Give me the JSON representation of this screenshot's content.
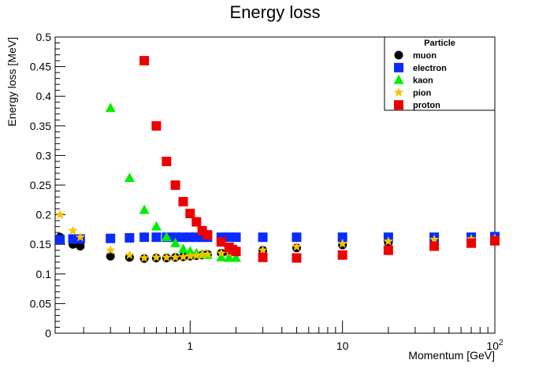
{
  "chart_data": {
    "type": "scatter",
    "title": "Energy loss",
    "xlabel": "Momentum [GeV]",
    "ylabel": "Energy loss [MeV]",
    "xscale": "log",
    "xlim": [
      0.13,
      100
    ],
    "ylim": [
      0,
      0.5
    ],
    "x_ticks": [
      {
        "value": 1,
        "label": "1"
      },
      {
        "value": 10,
        "label": "10"
      },
      {
        "value": 100,
        "label": "10",
        "sup": "2"
      }
    ],
    "y_ticks": [
      {
        "value": 0,
        "label": "0"
      },
      {
        "value": 0.05,
        "label": "0.05"
      },
      {
        "value": 0.1,
        "label": "0.1"
      },
      {
        "value": 0.15,
        "label": "0.15"
      },
      {
        "value": 0.2,
        "label": "0.2"
      },
      {
        "value": 0.25,
        "label": "0.25"
      },
      {
        "value": 0.3,
        "label": "0.3"
      },
      {
        "value": 0.35,
        "label": "0.35"
      },
      {
        "value": 0.4,
        "label": "0.4"
      },
      {
        "value": 0.45,
        "label": "0.45"
      },
      {
        "value": 0.5,
        "label": "0.5"
      }
    ],
    "legend_title": "Particle",
    "legend_position": "top-right",
    "grid": false,
    "series": [
      {
        "name": "muon",
        "marker": "circle",
        "color": "#000000",
        "points": [
          [
            0.14,
            0.162
          ],
          [
            0.17,
            0.15
          ],
          [
            0.19,
            0.147
          ],
          [
            0.3,
            0.13
          ],
          [
            0.4,
            0.128
          ],
          [
            0.5,
            0.126
          ],
          [
            0.6,
            0.127
          ],
          [
            0.7,
            0.127
          ],
          [
            0.8,
            0.128
          ],
          [
            0.9,
            0.129
          ],
          [
            1.0,
            0.13
          ],
          [
            1.1,
            0.131
          ],
          [
            1.2,
            0.132
          ],
          [
            1.3,
            0.133
          ],
          [
            1.6,
            0.135
          ],
          [
            1.8,
            0.136
          ],
          [
            2.0,
            0.137
          ],
          [
            3.0,
            0.14
          ],
          [
            5.0,
            0.144
          ],
          [
            10,
            0.149
          ],
          [
            20,
            0.153
          ],
          [
            40,
            0.156
          ],
          [
            70,
            0.158
          ],
          [
            100,
            0.159
          ]
        ]
      },
      {
        "name": "electron",
        "marker": "square",
        "color": "#0a2bff",
        "points": [
          [
            0.14,
            0.158
          ],
          [
            0.17,
            0.159
          ],
          [
            0.19,
            0.159
          ],
          [
            0.3,
            0.16
          ],
          [
            0.4,
            0.161
          ],
          [
            0.5,
            0.162
          ],
          [
            0.6,
            0.162
          ],
          [
            0.7,
            0.162
          ],
          [
            0.8,
            0.162
          ],
          [
            0.9,
            0.162
          ],
          [
            1.0,
            0.162
          ],
          [
            1.1,
            0.162
          ],
          [
            1.2,
            0.162
          ],
          [
            1.3,
            0.162
          ],
          [
            1.6,
            0.162
          ],
          [
            1.8,
            0.162
          ],
          [
            2.0,
            0.162
          ],
          [
            3.0,
            0.162
          ],
          [
            5.0,
            0.162
          ],
          [
            10,
            0.162
          ],
          [
            20,
            0.162
          ],
          [
            40,
            0.162
          ],
          [
            70,
            0.162
          ],
          [
            100,
            0.163
          ]
        ]
      },
      {
        "name": "kaon",
        "marker": "triangle",
        "color": "#00ee00",
        "points": [
          [
            0.3,
            0.38
          ],
          [
            0.4,
            0.262
          ],
          [
            0.5,
            0.208
          ],
          [
            0.6,
            0.18
          ],
          [
            0.7,
            0.162
          ],
          [
            0.8,
            0.152
          ],
          [
            0.9,
            0.142
          ],
          [
            1.0,
            0.138
          ],
          [
            1.1,
            0.135
          ],
          [
            1.2,
            0.133
          ],
          [
            1.3,
            0.132
          ],
          [
            1.6,
            0.128
          ],
          [
            1.8,
            0.127
          ],
          [
            2.0,
            0.127
          ]
        ]
      },
      {
        "name": "pion",
        "marker": "star",
        "color": "#f5c400",
        "points": [
          [
            0.14,
            0.2
          ],
          [
            0.17,
            0.173
          ],
          [
            0.19,
            0.162
          ],
          [
            0.3,
            0.14
          ],
          [
            0.4,
            0.132
          ],
          [
            0.5,
            0.127
          ],
          [
            0.6,
            0.128
          ],
          [
            0.7,
            0.128
          ],
          [
            0.8,
            0.128
          ],
          [
            0.9,
            0.129
          ],
          [
            1.0,
            0.13
          ],
          [
            1.1,
            0.131
          ],
          [
            1.2,
            0.132
          ],
          [
            1.3,
            0.133
          ],
          [
            1.6,
            0.135
          ],
          [
            1.8,
            0.136
          ],
          [
            2.0,
            0.137
          ],
          [
            3.0,
            0.14
          ],
          [
            5.0,
            0.146
          ],
          [
            10,
            0.151
          ],
          [
            20,
            0.155
          ],
          [
            40,
            0.158
          ],
          [
            70,
            0.159
          ],
          [
            100,
            0.16
          ]
        ]
      },
      {
        "name": "proton",
        "marker": "square",
        "color": "#ee0000",
        "points": [
          [
            0.5,
            0.46
          ],
          [
            0.6,
            0.35
          ],
          [
            0.7,
            0.29
          ],
          [
            0.8,
            0.25
          ],
          [
            0.9,
            0.222
          ],
          [
            1.0,
            0.202
          ],
          [
            1.1,
            0.188
          ],
          [
            1.2,
            0.173
          ],
          [
            1.3,
            0.166
          ],
          [
            1.6,
            0.154
          ],
          [
            1.8,
            0.145
          ],
          [
            1.9,
            0.141
          ],
          [
            2.0,
            0.138
          ],
          [
            3.0,
            0.128
          ],
          [
            5.0,
            0.127
          ],
          [
            10,
            0.132
          ],
          [
            20,
            0.14
          ],
          [
            40,
            0.147
          ],
          [
            70,
            0.152
          ],
          [
            100,
            0.156
          ]
        ]
      }
    ]
  }
}
